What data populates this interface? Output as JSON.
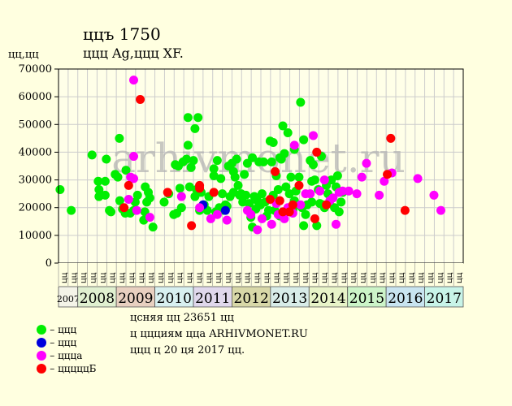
{
  "title": "ццъ 1750",
  "subtitle": "ццц Ag,ццц XF.",
  "ylabel": "цц,цц",
  "watermark": "arhivmonet.ru",
  "legend": [
    {
      "label": "– ццц",
      "color": "#00ee00"
    },
    {
      "label": "– ццц",
      "color": "#0000dd"
    },
    {
      "label": "– ццца",
      "color": "#ff00ff"
    },
    {
      "label": "– цццццБ",
      "color": "#ff0000"
    }
  ],
  "info": [
    "цсняя цц 23651 цц",
    "ц ццциям цца ARHIVMONET.RU",
    "ццц ц 20 ця 2017 цц."
  ],
  "colors": {
    "background": "#ffffe0",
    "plot_background": "#ffffe8",
    "grid": "#cccccc",
    "years": {
      "2007": "#f4f4e8",
      "2008": "#e0f0d0",
      "2009": "#e8d0c0",
      "2010": "#d8f0f0",
      "2011": "#e0d8ec",
      "2012": "#d8d8a8",
      "2013": "#d8ece8",
      "2014": "#e8f4c8",
      "2015": "#ccf4c8",
      "2016": "#c8e4f0",
      "2017": "#c8f4e8"
    }
  },
  "chart_data": {
    "type": "scatter",
    "title": "ццъ 1750",
    "subtitle": "ццц Ag,ццц XF.",
    "ylabel": "цц,цц",
    "ylim": [
      0,
      70000
    ],
    "yticks": [
      0,
      10000,
      20000,
      30000,
      40000,
      50000,
      60000,
      70000
    ],
    "ytick_labels": [
      "0",
      "10000",
      "20000",
      "30000",
      "40000",
      "50000",
      "60000",
      "70000"
    ],
    "xlim": [
      2007.0,
      2017.5
    ],
    "grid": true,
    "legend_position": "bottom-left",
    "x_month_labels": [
      "цц",
      "цц",
      "цц",
      "цц",
      "цц",
      "цц",
      "цц",
      "цц",
      "цц",
      "цц",
      "цц",
      "цц",
      "цц",
      "цц",
      "цц",
      "цц",
      "цц",
      "цц",
      "цц",
      "цц",
      "цц",
      "цц",
      "цц",
      "цц",
      "цц",
      "цц",
      "цц",
      "цц",
      "цц",
      "цц",
      "цц",
      "цц",
      "цц",
      "цц",
      "цц",
      "цц",
      "цц",
      "цц",
      "цц",
      "цц",
      "цц",
      "цц"
    ],
    "years": [
      {
        "label": "2007",
        "start": 2007.0,
        "end": 2007.5
      },
      {
        "label": "2008",
        "start": 2007.5,
        "end": 2008.5
      },
      {
        "label": "2009",
        "start": 2008.5,
        "end": 2009.5
      },
      {
        "label": "2010",
        "start": 2009.5,
        "end": 2010.5
      },
      {
        "label": "2011",
        "start": 2010.5,
        "end": 2011.5
      },
      {
        "label": "2012",
        "start": 2011.5,
        "end": 2012.5
      },
      {
        "label": "2013",
        "start": 2012.5,
        "end": 2013.5
      },
      {
        "label": "2014",
        "start": 2013.5,
        "end": 2014.5
      },
      {
        "label": "2015",
        "start": 2014.5,
        "end": 2015.5
      },
      {
        "label": "2016",
        "start": 2015.5,
        "end": 2016.5
      },
      {
        "label": "2017",
        "start": 2016.5,
        "end": 2017.5
      }
    ],
    "series": [
      {
        "name": "– ццц",
        "color": "#00ee00",
        "points": [
          [
            2007.04,
            26500
          ],
          [
            2007.33,
            19000
          ],
          [
            2007.87,
            39000
          ],
          [
            2008.03,
            29500
          ],
          [
            2008.05,
            26500
          ],
          [
            2008.05,
            24000
          ],
          [
            2008.21,
            29500
          ],
          [
            2008.21,
            24500
          ],
          [
            2008.24,
            37500
          ],
          [
            2008.32,
            19000
          ],
          [
            2008.36,
            18500
          ],
          [
            2008.47,
            32000
          ],
          [
            2008.54,
            31000
          ],
          [
            2008.58,
            45000
          ],
          [
            2008.59,
            22500
          ],
          [
            2008.66,
            19500
          ],
          [
            2008.75,
            33500
          ],
          [
            2008.73,
            18000
          ],
          [
            2008.86,
            18000
          ],
          [
            2008.95,
            19000
          ],
          [
            2008.99,
            22000
          ],
          [
            2009.05,
            24500
          ],
          [
            2009.24,
            18500
          ],
          [
            2009.21,
            15500
          ],
          [
            2009.25,
            27500
          ],
          [
            2009.29,
            22000
          ],
          [
            2009.33,
            25500
          ],
          [
            2009.37,
            23500
          ],
          [
            2009.45,
            13000
          ],
          [
            2009.74,
            22000
          ],
          [
            2009.86,
            25000
          ],
          [
            2009.99,
            17500
          ],
          [
            2010.03,
            35500
          ],
          [
            2010.07,
            18000
          ],
          [
            2010.15,
            27000
          ],
          [
            2010.11,
            35000
          ],
          [
            2010.19,
            20000
          ],
          [
            2010.23,
            36500
          ],
          [
            2010.32,
            37500
          ],
          [
            2010.36,
            52500
          ],
          [
            2010.36,
            42500
          ],
          [
            2010.4,
            27500
          ],
          [
            2010.44,
            34500
          ],
          [
            2010.5,
            37000
          ],
          [
            2010.54,
            24000
          ],
          [
            2010.54,
            48500
          ],
          [
            2010.58,
            26500
          ],
          [
            2010.62,
            52500
          ],
          [
            2010.66,
            19000
          ],
          [
            2010.7,
            25500
          ],
          [
            2010.78,
            21000
          ],
          [
            2010.86,
            19000
          ],
          [
            2010.9,
            24000
          ],
          [
            2011.03,
            31500
          ],
          [
            2011.03,
            34000
          ],
          [
            2011.08,
            18500
          ],
          [
            2011.12,
            37000
          ],
          [
            2011.17,
            20000
          ],
          [
            2011.21,
            30500
          ],
          [
            2011.25,
            25000
          ],
          [
            2011.29,
            19000
          ],
          [
            2011.33,
            21000
          ],
          [
            2011.37,
            20500
          ],
          [
            2011.41,
            35000
          ],
          [
            2011.45,
            24000
          ],
          [
            2011.5,
            36000
          ],
          [
            2011.54,
            33000
          ],
          [
            2011.54,
            25500
          ],
          [
            2011.58,
            31000
          ],
          [
            2011.62,
            37500
          ],
          [
            2011.66,
            28000
          ],
          [
            2011.7,
            24500
          ],
          [
            2011.74,
            25000
          ],
          [
            2011.78,
            22000
          ],
          [
            2011.82,
            32000
          ],
          [
            2011.86,
            24500
          ],
          [
            2011.9,
            36000
          ],
          [
            2011.95,
            21500
          ],
          [
            2011.99,
            16500
          ],
          [
            2012.03,
            13000
          ],
          [
            2012.03,
            38000
          ],
          [
            2012.08,
            24000
          ],
          [
            2012.12,
            19500
          ],
          [
            2012.16,
            22500
          ],
          [
            2012.2,
            36500
          ],
          [
            2012.24,
            21000
          ],
          [
            2012.28,
            25000
          ],
          [
            2012.32,
            36500
          ],
          [
            2012.36,
            22000
          ],
          [
            2012.4,
            17000
          ],
          [
            2012.45,
            19000
          ],
          [
            2012.49,
            44000
          ],
          [
            2012.53,
            36500
          ],
          [
            2012.57,
            43500
          ],
          [
            2012.57,
            24500
          ],
          [
            2012.61,
            19000
          ],
          [
            2012.65,
            31500
          ],
          [
            2012.7,
            26500
          ],
          [
            2012.74,
            38000
          ],
          [
            2012.74,
            17000
          ],
          [
            2012.78,
            37500
          ],
          [
            2012.82,
            49500
          ],
          [
            2012.86,
            39500
          ],
          [
            2012.9,
            27500
          ],
          [
            2012.95,
            47000
          ],
          [
            2012.99,
            25000
          ],
          [
            2013.03,
            31000
          ],
          [
            2013.08,
            19000
          ],
          [
            2013.12,
            22500
          ],
          [
            2013.12,
            41000
          ],
          [
            2013.16,
            26000
          ],
          [
            2013.2,
            21000
          ],
          [
            2013.24,
            31000
          ],
          [
            2013.28,
            58000
          ],
          [
            2013.32,
            20000
          ],
          [
            2013.36,
            44500
          ],
          [
            2013.36,
            13500
          ],
          [
            2013.41,
            17500
          ],
          [
            2013.45,
            21000
          ],
          [
            2013.53,
            37000
          ],
          [
            2013.57,
            29500
          ],
          [
            2013.57,
            22000
          ],
          [
            2013.61,
            35500
          ],
          [
            2013.65,
            30000
          ],
          [
            2013.7,
            13500
          ],
          [
            2013.74,
            26500
          ],
          [
            2013.78,
            21500
          ],
          [
            2013.82,
            38500
          ],
          [
            2013.86,
            21000
          ],
          [
            2013.9,
            20000
          ],
          [
            2013.95,
            28000
          ],
          [
            2013.99,
            25000
          ],
          [
            2014.03,
            22000
          ],
          [
            2014.08,
            30000
          ],
          [
            2014.16,
            20000
          ],
          [
            2014.2,
            27500
          ],
          [
            2014.24,
            31500
          ],
          [
            2014.28,
            18500
          ],
          [
            2014.33,
            22000
          ],
          [
            2014.37,
            25500
          ]
        ]
      },
      {
        "name": "– ццц",
        "color": "#0000dd",
        "points": [
          [
            2010.75,
            21000
          ],
          [
            2011.33,
            19000
          ]
        ]
      },
      {
        "name": "– ццца",
        "color": "#ff00ff",
        "points": [
          [
            2008.82,
            23000
          ],
          [
            2008.87,
            31000
          ],
          [
            2008.95,
            38500
          ],
          [
            2008.95,
            30500
          ],
          [
            2008.95,
            66000
          ],
          [
            2009.03,
            19000
          ],
          [
            2009.37,
            16500
          ],
          [
            2010.19,
            24000
          ],
          [
            2010.66,
            20000
          ],
          [
            2010.95,
            16000
          ],
          [
            2011.12,
            17500
          ],
          [
            2011.37,
            15500
          ],
          [
            2011.9,
            19000
          ],
          [
            2011.99,
            17500
          ],
          [
            2012.16,
            12000
          ],
          [
            2012.28,
            16000
          ],
          [
            2012.53,
            14000
          ],
          [
            2012.65,
            21500
          ],
          [
            2012.7,
            17500
          ],
          [
            2012.86,
            16000
          ],
          [
            2012.95,
            20000
          ],
          [
            2013.08,
            18000
          ],
          [
            2013.12,
            42500
          ],
          [
            2013.28,
            21000
          ],
          [
            2013.41,
            25000
          ],
          [
            2013.53,
            25000
          ],
          [
            2013.61,
            46000
          ],
          [
            2013.78,
            26000
          ],
          [
            2013.9,
            30000
          ],
          [
            2014.04,
            22500
          ],
          [
            2014.12,
            23500
          ],
          [
            2014.2,
            14000
          ],
          [
            2014.28,
            25500
          ],
          [
            2014.37,
            26000
          ],
          [
            2014.53,
            26000
          ],
          [
            2014.74,
            25000
          ],
          [
            2014.87,
            31000
          ],
          [
            2014.99,
            36000
          ],
          [
            2015.32,
            24500
          ],
          [
            2015.45,
            29500
          ],
          [
            2015.65,
            32500
          ],
          [
            2016.32,
            30500
          ],
          [
            2016.74,
            24500
          ],
          [
            2016.92,
            19000
          ]
        ]
      },
      {
        "name": "– цццццБ",
        "color": "#ff0000",
        "points": [
          [
            2008.7,
            20000
          ],
          [
            2008.82,
            28000
          ],
          [
            2009.12,
            59000
          ],
          [
            2009.83,
            25500
          ],
          [
            2010.45,
            13500
          ],
          [
            2010.66,
            28000
          ],
          [
            2010.66,
            27000
          ],
          [
            2011.03,
            25500
          ],
          [
            2012.49,
            23000
          ],
          [
            2012.62,
            33000
          ],
          [
            2012.74,
            22500
          ],
          [
            2012.82,
            18500
          ],
          [
            2012.99,
            18500
          ],
          [
            2013.08,
            21000
          ],
          [
            2013.24,
            28000
          ],
          [
            2013.65,
            16000
          ],
          [
            2013.7,
            40000
          ],
          [
            2013.95,
            21000
          ],
          [
            2015.53,
            32000
          ],
          [
            2015.62,
            45000
          ],
          [
            2015.99,
            19000
          ]
        ]
      }
    ]
  }
}
